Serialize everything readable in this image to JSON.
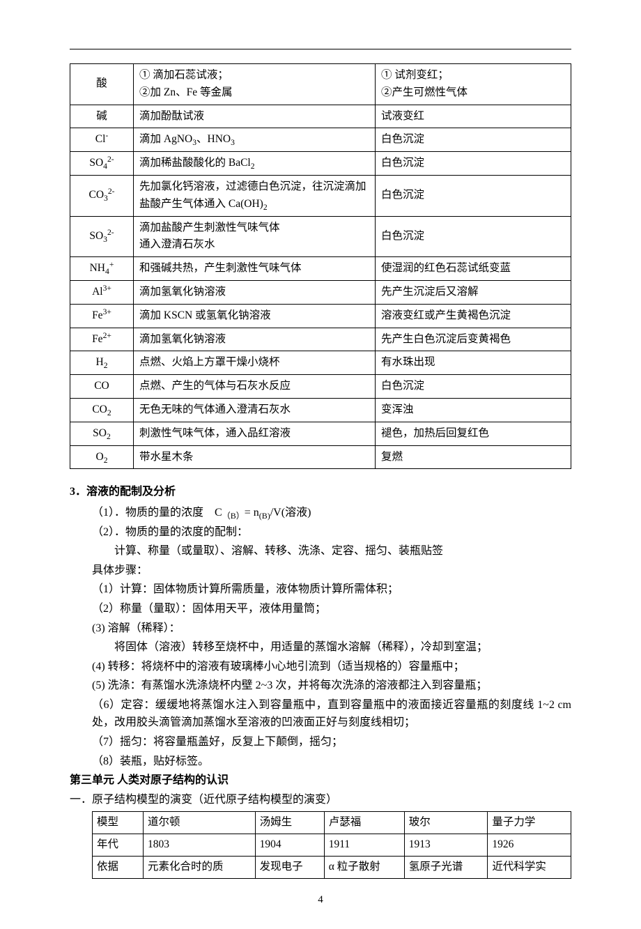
{
  "ion_table": {
    "rows": [
      {
        "species": "酸",
        "method_lines": [
          "① 滴加石蕊试液；",
          "②加 Zn、Fe 等金属"
        ],
        "result_lines": [
          "① 试剂变红；",
          "②产生可燃性气体"
        ]
      },
      {
        "species": "碱",
        "method_lines": [
          "滴加酚酞试液"
        ],
        "result_lines": [
          "试液变红"
        ]
      },
      {
        "species_html": "Cl<sup>-</sup>",
        "method_lines_html": [
          "滴加 AgNO<sub>3</sub>、HNO<sub>3</sub>"
        ],
        "result_lines": [
          "白色沉淀"
        ]
      },
      {
        "species_html": "SO<sub>4</sub><sup>2-</sup>",
        "method_lines_html": [
          "滴加稀盐酸酸化的 BaCl<sub>2</sub>"
        ],
        "result_lines": [
          "白色沉淀"
        ]
      },
      {
        "species_html": "CO<sub>3</sub><sup>2-</sup>",
        "method_lines_html": [
          "先加氯化钙溶液，过滤德白色沉淀，往沉淀滴加盐酸产生气体通入 Ca(OH)<sub>2</sub>"
        ],
        "result_lines": [
          "白色沉淀"
        ]
      },
      {
        "species_html": "SO<sub>3</sub><sup>2-</sup>",
        "method_lines": [
          "滴加盐酸产生刺激性气味气体",
          "通入澄清石灰水"
        ],
        "result_lines": [
          "白色沉淀"
        ]
      },
      {
        "species_html": "NH<sub>4</sub><sup>+</sup>",
        "method_lines": [
          "和强碱共热，产生刺激性气味气体"
        ],
        "result_lines": [
          "使湿润的红色石蕊试纸变蓝"
        ]
      },
      {
        "species_html": "Al<sup>3+</sup>",
        "method_lines": [
          "滴加氢氧化钠溶液"
        ],
        "result_lines": [
          "先产生沉淀后又溶解"
        ]
      },
      {
        "species_html": "Fe<sup>3+</sup>",
        "method_lines": [
          "滴加 KSCN 或氢氧化钠溶液"
        ],
        "result_lines": [
          "溶液变红或产生黄褐色沉淀"
        ]
      },
      {
        "species_html": "Fe<sup>2+</sup>",
        "method_lines": [
          "滴加氢氧化钠溶液"
        ],
        "result_lines": [
          "先产生白色沉淀后变黄褐色"
        ]
      },
      {
        "species_html": "H<sub>2</sub>",
        "method_lines": [
          "点燃、火焰上方罩干燥小烧杯"
        ],
        "result_lines": [
          "有水珠出现"
        ]
      },
      {
        "species": "CO",
        "method_lines": [
          "点燃、产生的气体与石灰水反应"
        ],
        "result_lines": [
          "白色沉淀"
        ]
      },
      {
        "species_html": "CO<sub>2</sub>",
        "method_lines": [
          "无色无味的气体通入澄清石灰水"
        ],
        "result_lines": [
          "变浑浊"
        ]
      },
      {
        "species_html": "SO<sub>2</sub>",
        "method_lines": [
          "刺激性气味气体，通入品红溶液"
        ],
        "result_lines": [
          "褪色，加热后回复红色"
        ]
      },
      {
        "species_html": "O<sub>2</sub>",
        "method_lines": [
          "带水星木条"
        ],
        "result_lines": [
          "复燃"
        ]
      }
    ]
  },
  "section3": {
    "heading": "3．溶液的配制及分析",
    "line1": "（1）．物质的量的浓度　C（B）= n(B)/V(溶液)",
    "line2": "（2）．物质的量的浓度的配制：",
    "line3": "计算、称量（或量取）、溶解、转移、洗涤、定容、摇匀、装瓶贴签",
    "steps_label": "具体步骤：",
    "steps": [
      "（1）计算：固体物质计算所需质量，液体物质计算所需体积；",
      "（2）称量（量取）：固体用天平，液体用量筒；",
      "(3) 溶解（稀释）：",
      "将固体（溶液）转移至烧杯中，用适量的蒸馏水溶解（稀释），冷却到室温；",
      "(4) 转移：将烧杯中的溶液有玻璃棒小心地引流到（适当规格的）容量瓶中；",
      "(5) 洗涤：有蒸馏水洗涤烧杯内壁 2~3 次，并将每次洗涤的溶液都注入到容量瓶；",
      "（6）定容：缓缓地将蒸馏水注入到容量瓶中，直到容量瓶中的液面接近容量瓶的刻度线 1~2 cm 处，改用胶头滴管滴加蒸馏水至溶液的凹液面正好与刻度线相切；",
      "（7）摇匀：将容量瓶盖好，反复上下颠倒，摇匀；",
      "（8）装瓶，贴好标签。"
    ]
  },
  "unit3": {
    "heading": "第三单元 人类对原子结构的认识",
    "sub": "一．原子结构模型的演变（近代原子结构模型的演变）"
  },
  "model_table": {
    "header_row": [
      "模型",
      "道尔顿",
      "汤姆生",
      "卢瑟福",
      "玻尔",
      "量子力学"
    ],
    "year_row": [
      "年代",
      "1803",
      "1904",
      "1911",
      "1913",
      "1926"
    ],
    "basis_row": [
      "依据",
      "元素化合时的质",
      "发现电子",
      "α 粒子散射",
      "氢原子光谱",
      "近代科学实"
    ]
  },
  "page_number": "4"
}
